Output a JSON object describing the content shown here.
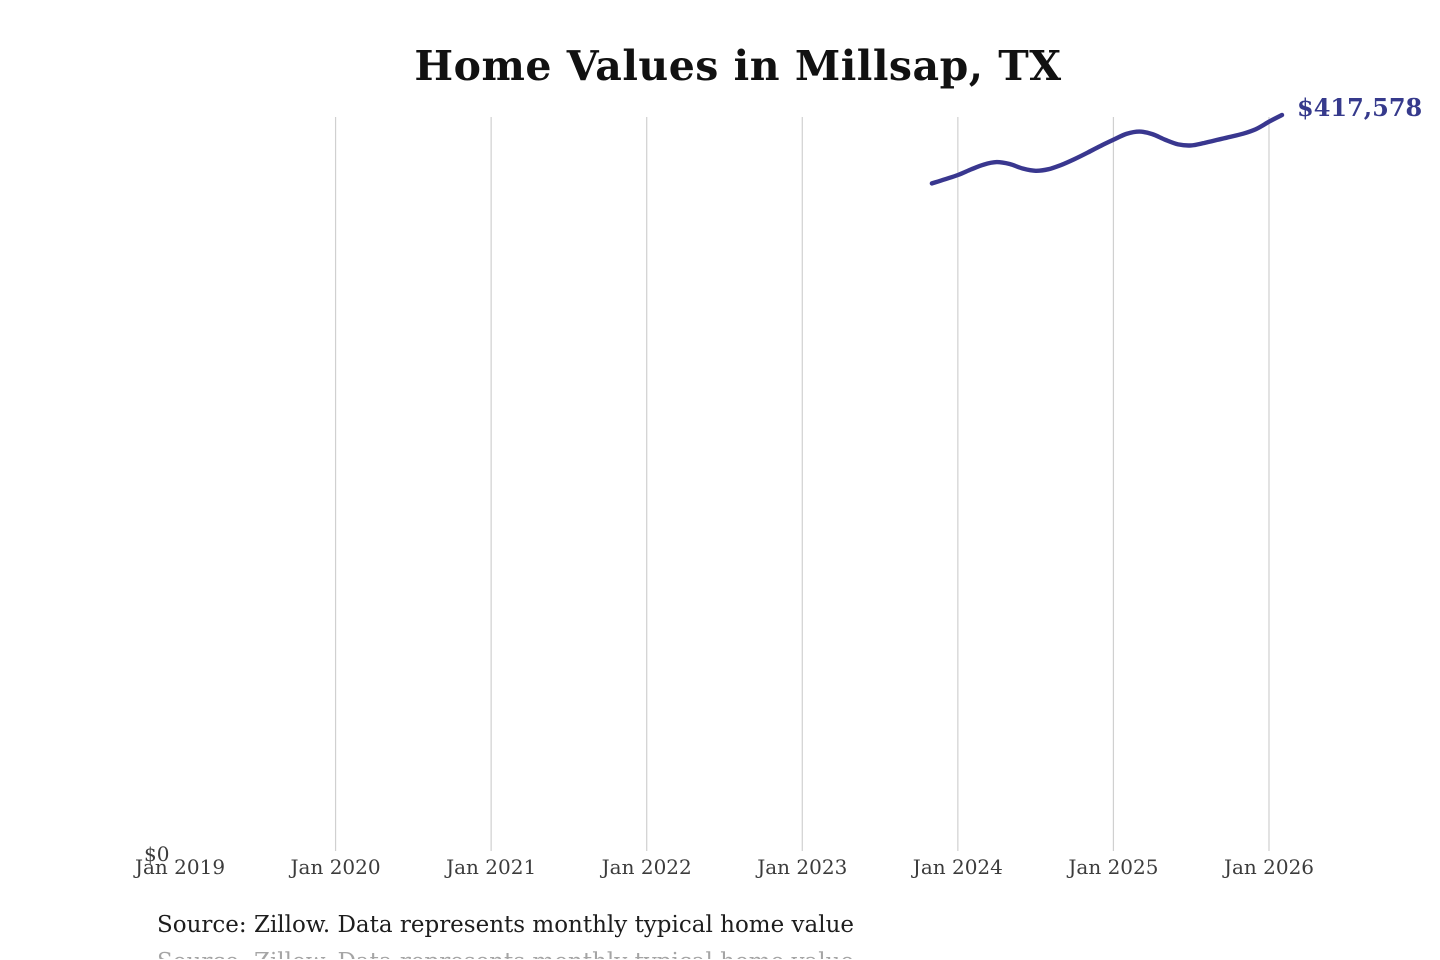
{
  "title": "Home Values in Millsap, TX",
  "last_value_label": "$417,578",
  "y_axis": {
    "zero_label": "$0"
  },
  "source": {
    "note": "Source: Zillow. Data represents monthly typical home value"
  },
  "colors": {
    "line": "#39378f",
    "value_label": "#363a8c",
    "gridline": "#d0d0d0",
    "tick_text": "#3c3c3c",
    "title_text": "#111111",
    "source_text": "#1d1d1d",
    "background": "#ffffff"
  },
  "chart_data": {
    "type": "line",
    "title": "Home Values in Millsap, TX",
    "xlabel": "",
    "ylabel": "",
    "ylim": [
      0,
      417578
    ],
    "x_ticks": [
      "Jan 2019",
      "Jan 2020",
      "Jan 2021",
      "Jan 2022",
      "Jan 2023",
      "Jan 2024",
      "Jan 2025",
      "Jan 2026"
    ],
    "grid": "vertical gridlines at each January tick except Jan 2019; no horizontal gridlines; no y-axis line",
    "legend": "none",
    "end_annotation": "$417,578",
    "series": [
      {
        "name": "Typical home value",
        "months": [
          "2023-11",
          "2023-12",
          "2024-01",
          "2024-02",
          "2024-03",
          "2024-04",
          "2024-05",
          "2024-06",
          "2024-07",
          "2024-08",
          "2024-09",
          "2024-10",
          "2024-11",
          "2024-12",
          "2025-01",
          "2025-02",
          "2025-03",
          "2025-04",
          "2025-05",
          "2025-06",
          "2025-07",
          "2025-08",
          "2025-09",
          "2025-10",
          "2025-11",
          "2025-12",
          "2026-01",
          "2026-02"
        ],
        "values": [
          379000,
          381300,
          383700,
          386800,
          389600,
          391000,
          389900,
          387400,
          386100,
          387000,
          389500,
          392700,
          396300,
          400100,
          403600,
          406900,
          408200,
          406800,
          403600,
          401000,
          400400,
          401800,
          403500,
          405200,
          407000,
          409600,
          413800,
          417578
        ]
      }
    ]
  }
}
